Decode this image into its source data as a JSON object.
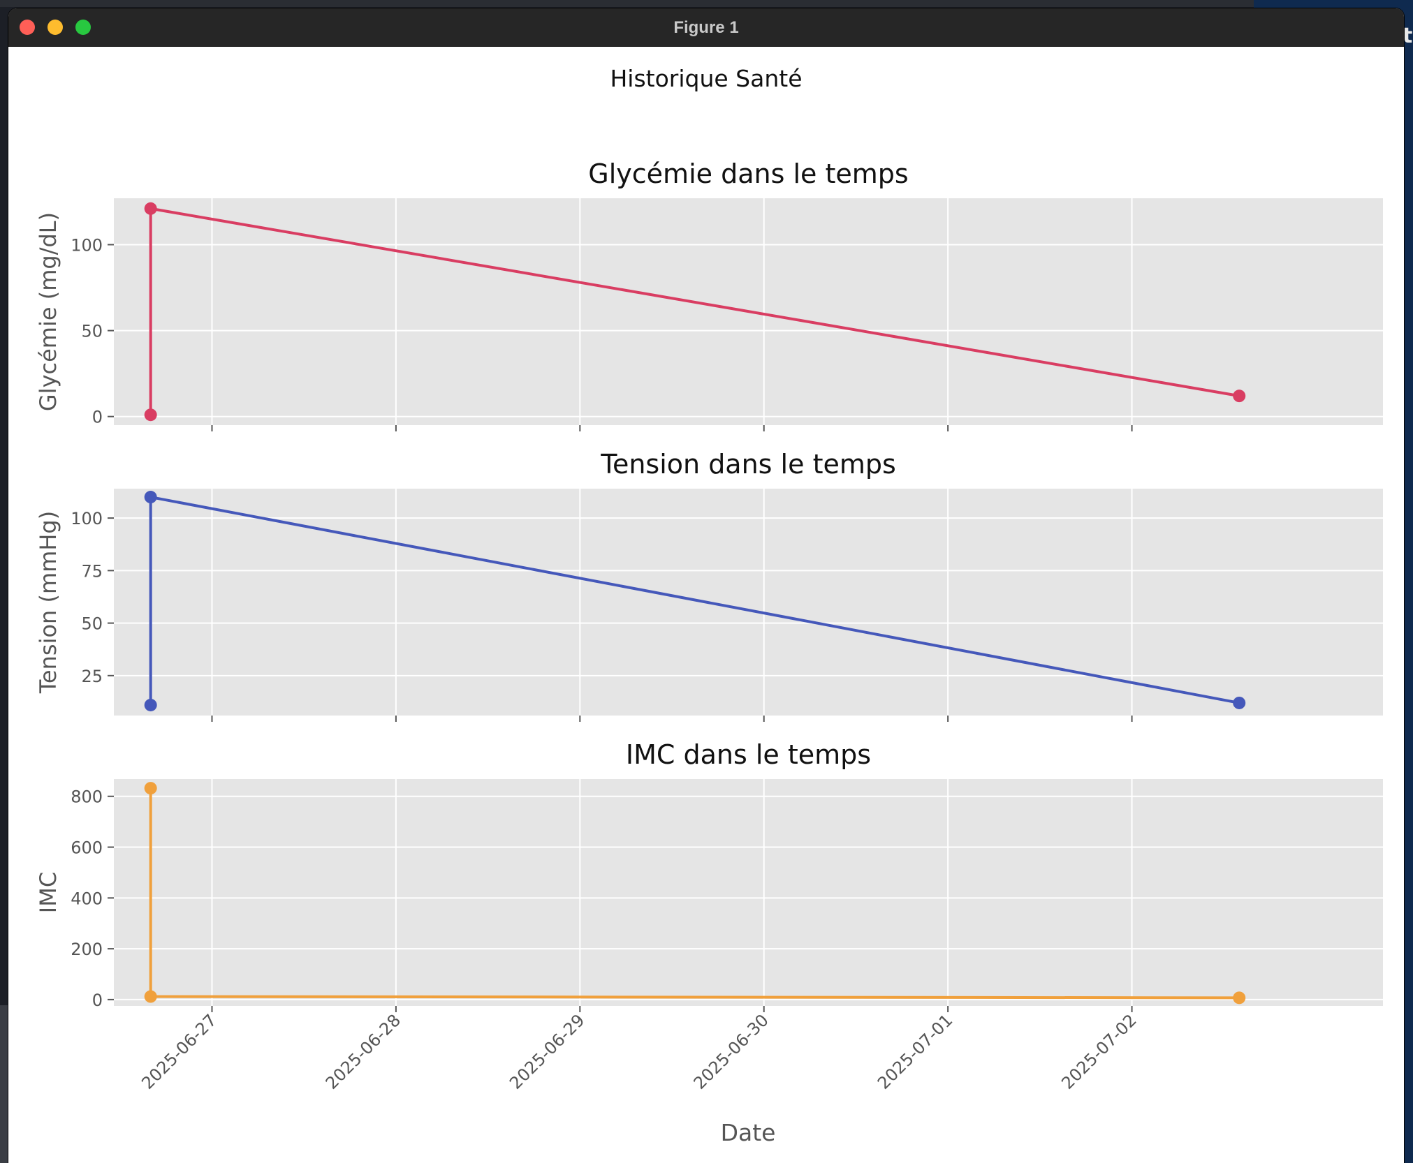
{
  "window": {
    "title": "Figure 1",
    "controls": [
      "close",
      "minimize",
      "maximize"
    ]
  },
  "figure": {
    "suptitle": "Historique Santé",
    "xlabel": "Date",
    "x_ticks": [
      "2025-06-27",
      "2025-06-28",
      "2025-06-29",
      "2025-06-30",
      "2025-07-01",
      "2025-07-02"
    ]
  },
  "colors": {
    "glycemie": "#d93d62",
    "tension": "#4558ba",
    "imc": "#f0a03c",
    "axes_bg": "#e5e5e5",
    "grid": "#ffffff"
  },
  "chart_data": [
    {
      "type": "line",
      "title": "Glycémie dans le temps",
      "xlabel": "Date",
      "ylabel": "Glycémie (mg/dL)",
      "color": "#d93d62",
      "marker": "o",
      "x": [
        "2025-06-26 16:00",
        "2025-06-26 16:00",
        "2025-07-02 14:00"
      ],
      "y": [
        1,
        121,
        12
      ],
      "xlim": [
        "2025-06-26 11:12",
        "2025-07-03 08:45"
      ],
      "ylim": [
        -5,
        127
      ],
      "yticks": [
        0,
        50,
        100
      ],
      "grid": true
    },
    {
      "type": "line",
      "title": "Tension dans le temps",
      "xlabel": "Date",
      "ylabel": "Tension (mmHg)",
      "color": "#4558ba",
      "marker": "o",
      "x": [
        "2025-06-26 16:00",
        "2025-06-26 16:00",
        "2025-07-02 14:00"
      ],
      "y": [
        11,
        110,
        12
      ],
      "xlim": [
        "2025-06-26 11:12",
        "2025-07-03 08:45"
      ],
      "ylim": [
        6,
        114
      ],
      "yticks": [
        25,
        50,
        75,
        100
      ],
      "grid": true
    },
    {
      "type": "line",
      "title": "IMC dans le temps",
      "xlabel": "Date",
      "ylabel": "IMC",
      "color": "#f0a03c",
      "marker": "o",
      "x": [
        "2025-06-26 16:00",
        "2025-06-26 16:00",
        "2025-07-02 14:00"
      ],
      "y": [
        832,
        12,
        7
      ],
      "xlim": [
        "2025-06-26 11:12",
        "2025-07-03 08:45"
      ],
      "ylim": [
        -25,
        868
      ],
      "yticks": [
        0,
        200,
        400,
        600,
        800
      ],
      "grid": true
    }
  ]
}
